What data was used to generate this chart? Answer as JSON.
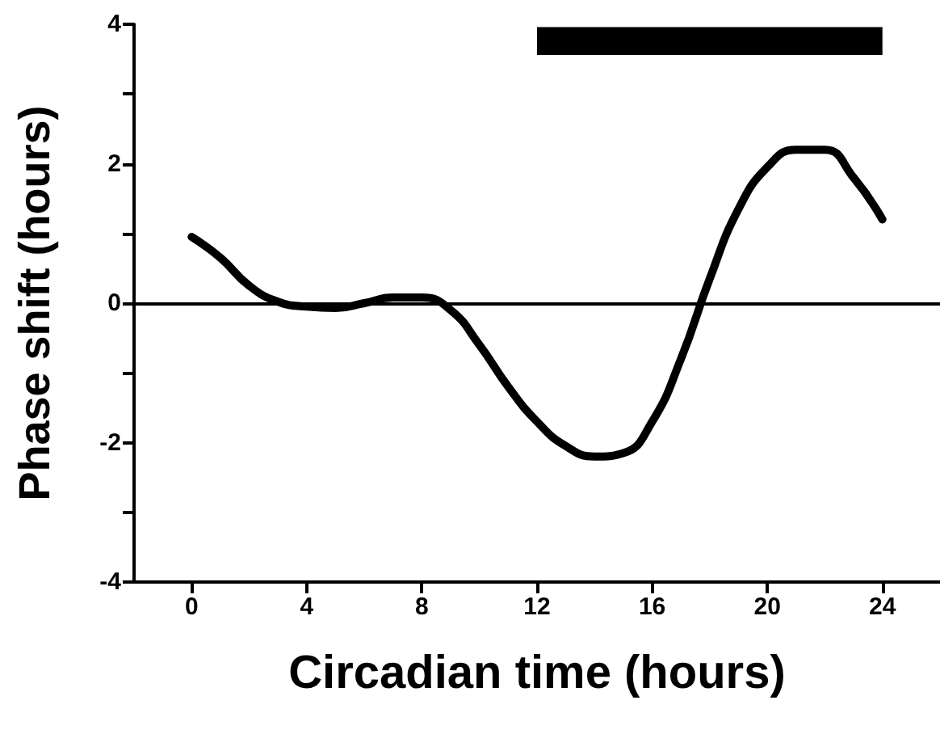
{
  "chart_data": {
    "type": "line",
    "xlabel": "Circadian time (hours)",
    "ylabel": "Phase shift (hours)",
    "x": [
      0,
      1,
      2,
      3,
      4,
      5,
      6,
      7,
      8,
      9,
      10,
      11,
      12,
      13,
      14,
      15,
      16,
      17,
      18,
      19,
      20,
      21,
      22,
      23,
      24
    ],
    "series": [
      {
        "color": "#000000",
        "values": [
          0.95,
          0.65,
          0.25,
          0.02,
          -0.05,
          -0.07,
          0.0,
          0.08,
          0.08,
          -0.1,
          -0.6,
          -1.2,
          -1.7,
          -2.05,
          -2.2,
          -2.15,
          -1.7,
          -0.8,
          0.35,
          1.35,
          1.95,
          2.2,
          2.2,
          1.8,
          1.2
        ]
      }
    ],
    "xlim": [
      -2,
      26
    ],
    "xticks": [
      0,
      4,
      8,
      12,
      16,
      20,
      24
    ],
    "ylim": [
      -4,
      4
    ],
    "yticks": [
      -4,
      {
        "value": -3,
        "label": null
      },
      -2,
      {
        "value": -1,
        "label": null
      },
      0,
      {
        "value": 1,
        "label": null
      },
      2,
      {
        "value": 3,
        "label": null
      },
      4
    ],
    "ref_lines": [
      {
        "axis": "y",
        "value": 0,
        "color": "#000000"
      }
    ],
    "bands": [
      {
        "axis": "x",
        "from": 12,
        "to": 24,
        "color": "#000000"
      }
    ],
    "grid": false,
    "marker": "none",
    "line_style": "solid"
  }
}
